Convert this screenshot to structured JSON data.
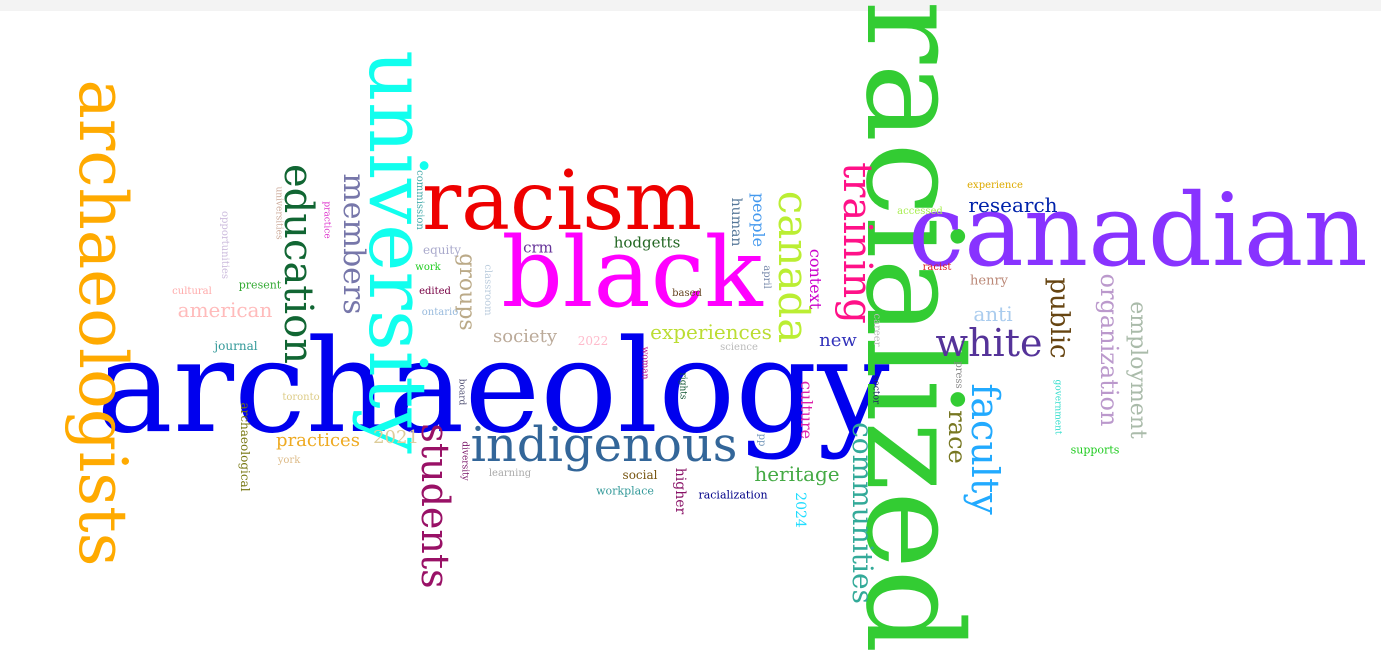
{
  "words": [
    {
      "text": "archaeology",
      "color": "#0000ee",
      "rotated": false
    },
    {
      "text": "racialized",
      "color": "#33cc33",
      "rotated": true
    },
    {
      "text": "black",
      "color": "#ff00ff",
      "rotated": false
    },
    {
      "text": "canadian",
      "color": "#8833ff",
      "rotated": false
    },
    {
      "text": "racism",
      "color": "#ee0000",
      "rotated": false
    },
    {
      "text": "university",
      "color": "#11ffee",
      "rotated": true
    },
    {
      "text": "archaeologists",
      "color": "#ffaa00",
      "rotated": true
    },
    {
      "text": "indigenous",
      "color": "#336699",
      "rotated": false
    },
    {
      "text": "education",
      "color": "#116633",
      "rotated": true
    },
    {
      "text": "students",
      "color": "#991166",
      "rotated": true
    },
    {
      "text": "canada",
      "color": "#bbee33",
      "rotated": true
    },
    {
      "text": "training",
      "color": "#ff1188",
      "rotated": true
    },
    {
      "text": "faculty",
      "color": "#22aaff",
      "rotated": true
    },
    {
      "text": "communities",
      "color": "#33aa99",
      "rotated": true
    },
    {
      "text": "white",
      "color": "#553399",
      "rotated": false
    },
    {
      "text": "members",
      "color": "#7777aa",
      "rotated": true
    },
    {
      "text": "employment",
      "color": "#aabbaa",
      "rotated": true
    },
    {
      "text": "organization",
      "color": "#bb99cc",
      "rotated": true
    },
    {
      "text": "public",
      "color": "#664411",
      "rotated": true
    },
    {
      "text": "research",
      "color": "#0022aa",
      "rotated": false
    },
    {
      "text": "race",
      "color": "#777722",
      "rotated": true
    },
    {
      "text": "experiences",
      "color": "#bbdd33",
      "rotated": false
    },
    {
      "text": "heritage",
      "color": "#44aa44",
      "rotated": false
    },
    {
      "text": "practices",
      "color": "#eeaa22",
      "rotated": false
    },
    {
      "text": "groups",
      "color": "#bbaa88",
      "rotated": true
    },
    {
      "text": "american",
      "color": "#ffbbbb",
      "rotated": false
    },
    {
      "text": "society",
      "color": "#bbaa99",
      "rotated": false
    },
    {
      "text": "culture",
      "color": "#dd22aa",
      "rotated": true
    },
    {
      "text": "context",
      "color": "#cc00cc",
      "rotated": true
    },
    {
      "text": "2021",
      "color": "#ddcc99",
      "rotated": false
    },
    {
      "text": "anti",
      "color": "#aaccee",
      "rotated": false
    },
    {
      "text": "new",
      "color": "#3333bb",
      "rotated": false
    },
    {
      "text": "hodgetts",
      "color": "#226622",
      "rotated": false
    },
    {
      "text": "people",
      "color": "#4499ee",
      "rotated": true
    },
    {
      "text": "human",
      "color": "#557799",
      "rotated": true
    },
    {
      "text": "crm",
      "color": "#663399",
      "rotated": false
    },
    {
      "text": "higher",
      "color": "#881166",
      "rotated": true
    },
    {
      "text": "henry",
      "color": "#bb8877",
      "rotated": false
    },
    {
      "text": "2024",
      "color": "#22ddff",
      "rotated": true
    },
    {
      "text": "archaeological",
      "color": "#777711",
      "rotated": true
    },
    {
      "text": "social",
      "color": "#775511",
      "rotated": false
    },
    {
      "text": "journal",
      "color": "#339999",
      "rotated": false
    },
    {
      "text": "present",
      "color": "#33aa33",
      "rotated": false
    },
    {
      "text": "equity",
      "color": "#aaaacc",
      "rotated": false
    },
    {
      "text": "2022",
      "color": "#ffbbcc",
      "rotated": false
    },
    {
      "text": "racialization",
      "color": "#000088",
      "rotated": false
    },
    {
      "text": "workplace",
      "color": "#339999",
      "rotated": false
    },
    {
      "text": "supports",
      "color": "#22cc22",
      "rotated": false
    },
    {
      "text": "experience",
      "color": "#ddaa00",
      "rotated": false
    },
    {
      "text": "accessed",
      "color": "#aaee55",
      "rotated": false
    },
    {
      "text": "racist",
      "color": "#dd2222",
      "rotated": false
    },
    {
      "text": "press",
      "color": "#888888",
      "rotated": true
    },
    {
      "text": "sector",
      "color": "#222266",
      "rotated": true
    },
    {
      "text": "career",
      "color": "#bbbbbb",
      "rotated": true
    },
    {
      "text": "government",
      "color": "#33ddcc",
      "rotated": true
    },
    {
      "text": "science",
      "color": "#bbbbbb",
      "rotated": false
    },
    {
      "text": "april",
      "color": "#7788aa",
      "rotated": true
    },
    {
      "text": "pp",
      "color": "#7799bb",
      "rotated": true
    },
    {
      "text": "based",
      "color": "#664422",
      "rotated": false
    },
    {
      "text": "edited",
      "color": "#770044",
      "rotated": false
    },
    {
      "text": "work",
      "color": "#22cc22",
      "rotated": false
    },
    {
      "text": "ontario",
      "color": "#99bbdd",
      "rotated": false
    },
    {
      "text": "classroom",
      "color": "#bbccdd",
      "rotated": true
    },
    {
      "text": "commission",
      "color": "#44aaaa",
      "rotated": true
    },
    {
      "text": "practice",
      "color": "#dd33cc",
      "rotated": true
    },
    {
      "text": "universities",
      "color": "#ccaa99",
      "rotated": true
    },
    {
      "text": "opportunities",
      "color": "#ccbbdd",
      "rotated": true
    },
    {
      "text": "cultural",
      "color": "#ffaaaa",
      "rotated": false
    },
    {
      "text": "toronto",
      "color": "#ddcc88",
      "rotated": false
    },
    {
      "text": "york",
      "color": "#ddbb88",
      "rotated": false
    },
    {
      "text": "board",
      "color": "#555577",
      "rotated": true
    },
    {
      "text": "diversity",
      "color": "#771166",
      "rotated": true
    },
    {
      "text": "learning",
      "color": "#aaaaaa",
      "rotated": false
    },
    {
      "text": "woman",
      "color": "#bb1188",
      "rotated": true
    },
    {
      "text": "rights",
      "color": "#115533",
      "rotated": true
    }
  ]
}
